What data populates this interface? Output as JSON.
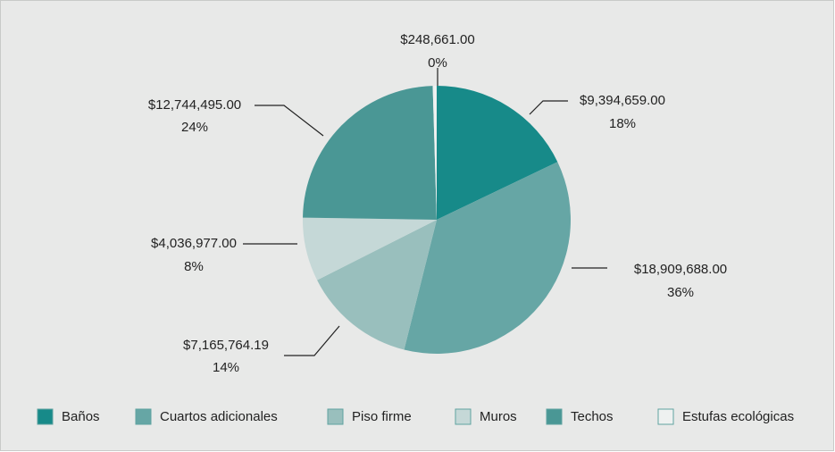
{
  "chart_data": {
    "type": "pie",
    "categories": [
      "Baños",
      "Cuartos adicionales",
      "Piso firme",
      "Muros",
      "Techos",
      "Estufas ecológicas"
    ],
    "values": [
      9394659.0,
      18909688.0,
      7165764.19,
      4036977.0,
      12744495.0,
      248661.0
    ],
    "value_labels": [
      "$9,394,659.00",
      "$18,909,688.00",
      "$7,165,764.19",
      "$4,036,977.00",
      "$12,744,495.00",
      "$248,661.00"
    ],
    "percent_labels": [
      "18%",
      "36%",
      "14%",
      "8%",
      "24%",
      "0%"
    ],
    "colors": [
      "#178a89",
      "#66a6a5",
      "#99bfbd",
      "#c5d8d7",
      "#4a9795",
      "#eef1f0"
    ],
    "legend": "bottom"
  }
}
